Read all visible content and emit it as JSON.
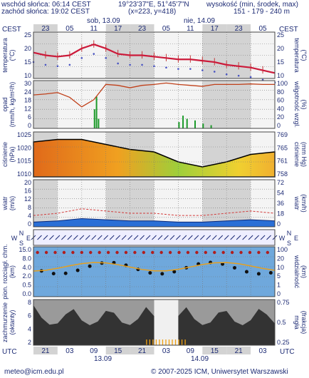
{
  "header": {
    "sunrise": "wschód słońca: 06:14 CEST",
    "sunset": "zachód słońca: 19:02 CEST",
    "coords": "19°23'37\"E, 51°45'7\"N",
    "grid": "(x=223, y=418)",
    "height_label": "wysokość (min, środek, max)",
    "height_values": "151 - 179 - 240 m",
    "tz_left": "CEST",
    "tz_right": "CEST",
    "day1": "sob, 13.09",
    "day2": "nie, 14.09",
    "top_hours": [
      "23",
      "05",
      "11",
      "17",
      "23",
      "05",
      "11",
      "17",
      "23",
      "05"
    ],
    "bottom_tz_left": "UTC",
    "bottom_tz_right": "UTC",
    "bottom_hours": [
      "21",
      "03",
      "09",
      "15",
      "21",
      "03",
      "09",
      "15",
      "21",
      "03"
    ],
    "bottom_day1": "13.09",
    "bottom_day2": "14.09"
  },
  "footer": {
    "email": "meteo@icm.edu.pl",
    "copyright": "© 2007-2025 ICM, Uniwersytet Warszawski"
  },
  "panels": {
    "temperature": {
      "label": "temperatura",
      "unit_left": "(°C)",
      "unit_right": "(°C)",
      "ticks": [
        "25",
        "20",
        "15",
        "10"
      ]
    },
    "precip": {
      "label": "opad",
      "unit_left": "(mm/h, kg/m²/h)",
      "label_right": "wilgotność wzgl.",
      "unit_right": "(%)",
      "ticks_left": [
        "30",
        "24",
        "18",
        "12",
        "6",
        "0"
      ],
      "ticks_right": [
        "100",
        "80",
        "60",
        "40",
        "20",
        "0"
      ]
    },
    "pressure": {
      "label": "ciśnienie",
      "unit_left": "(hPa)",
      "label_right": "ciśnienie",
      "unit_right": "(mm Hg)",
      "ticks_left": [
        "1025",
        "1020",
        "1015",
        "1010"
      ],
      "ticks_right": [
        "769",
        "765",
        "761",
        "758"
      ]
    },
    "wind": {
      "label": "wiatr",
      "unit_left": "(m/s)",
      "label_right": "wiatr",
      "unit_right": "(km/h)",
      "ticks_left": [
        "20",
        "16",
        "12",
        "8",
        "4",
        "0"
      ],
      "ticks_right": [
        "72",
        "54",
        "36",
        "18",
        "0"
      ]
    },
    "winddir": {
      "compass": "N S W E"
    },
    "cloud": {
      "label": "pion. rozciągł. chm.",
      "unit_left": "(km)",
      "label_right": "widzialność",
      "unit_right": "(km)",
      "ticks_left": [
        "15.0",
        "8.0",
        "4.0",
        "2.0",
        "0.5",
        "0.0"
      ],
      "ticks_right": [
        "100",
        "20",
        "10",
        "5",
        "1",
        "0"
      ]
    },
    "cover": {
      "label": "zachmurzenie",
      "unit_left": "(oktanty)",
      "label_right": "mgła",
      "unit_right": "(frakcja)",
      "ticks_left": [
        "8",
        "6",
        "4",
        "2"
      ],
      "ticks_right": [
        "0.75",
        "0.5",
        "0.25"
      ]
    }
  },
  "chart_data": [
    {
      "type": "line",
      "title": "temperatura",
      "ylabel": "(°C)",
      "ylim": [
        10,
        27
      ],
      "x_hours_from_start": [
        0,
        3,
        6,
        9,
        12,
        15,
        18,
        21,
        24,
        27,
        30,
        33,
        36,
        39,
        42,
        45,
        48,
        51,
        54,
        57,
        60
      ],
      "series": [
        {
          "name": "temperatura",
          "values": [
            19.5,
            18.5,
            18,
            18.5,
            21,
            22.5,
            21,
            19,
            18.5,
            18.5,
            18,
            17.5,
            17,
            17,
            16.5,
            16,
            15,
            14.5,
            14,
            13,
            12
          ]
        }
      ]
    },
    {
      "type": "line",
      "title": "wilgotność wzgl.",
      "ylabel": "(%)",
      "ylim": [
        0,
        100
      ],
      "x_hours_from_start": [
        0,
        3,
        6,
        9,
        12,
        15,
        18,
        21,
        24,
        27,
        30,
        33,
        36,
        39,
        42,
        45,
        48,
        51,
        54,
        57,
        60
      ],
      "series": [
        {
          "name": "wilgotność wzgl.",
          "values": [
            70,
            72,
            75,
            65,
            45,
            60,
            92,
            90,
            85,
            90,
            92,
            95,
            92,
            90,
            88,
            92,
            92,
            92,
            93,
            92,
            92
          ]
        }
      ]
    },
    {
      "type": "area",
      "title": "ciśnienie",
      "ylabel": "(hPa)",
      "ylim": [
        1007,
        1025
      ],
      "x_hours_from_start": [
        0,
        6,
        12,
        18,
        24,
        30,
        36,
        42,
        48,
        54,
        60
      ],
      "series": [
        {
          "name": "ciśnienie",
          "values": [
            1021,
            1022,
            1022,
            1020,
            1018,
            1017,
            1013,
            1011,
            1013,
            1016,
            1017
          ]
        }
      ]
    },
    {
      "type": "line",
      "title": "wiatr",
      "ylabel": "(m/s)",
      "ylim": [
        0,
        20
      ],
      "x_hours_from_start": [
        0,
        6,
        12,
        18,
        24,
        30,
        36,
        42,
        48,
        54,
        60
      ],
      "series": [
        {
          "name": "wiatr",
          "values": [
            2,
            2.5,
            3.5,
            3,
            2.5,
            2.5,
            2,
            2,
            2.5,
            3,
            2.5
          ]
        }
      ]
    }
  ]
}
